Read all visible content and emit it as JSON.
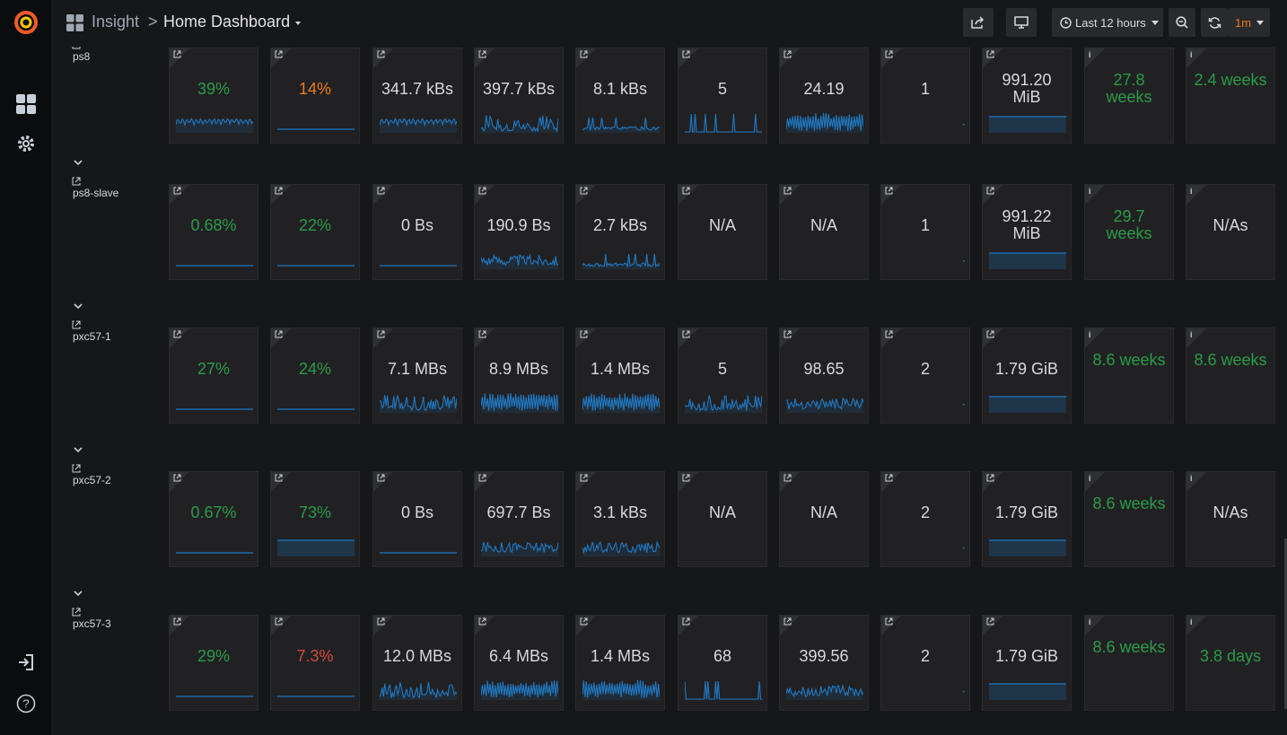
{
  "nav": {
    "app": "Insight",
    "separator": ">",
    "dashboard": "Home Dashboard"
  },
  "toolbar": {
    "time_range": "Last 12 hours",
    "refresh_interval": "1m"
  },
  "colors": {
    "green": "#299c46",
    "orange": "#eb7b18",
    "red": "#d44a3a",
    "spark": "#1f78c1",
    "panel_bg": "#212124"
  },
  "hosts": [
    {
      "name": "ps8",
      "panels": [
        {
          "v": "39%",
          "c": "green",
          "s": "wave"
        },
        {
          "v": "14%",
          "c": "orange",
          "s": "flat"
        },
        {
          "v": "341.7 kBs",
          "c": "white",
          "s": "wave"
        },
        {
          "v": "397.7 kBs",
          "c": "white",
          "s": "spiky"
        },
        {
          "v": "8.1 kBs",
          "c": "white",
          "s": "low"
        },
        {
          "v": "5",
          "c": "white",
          "s": "bars"
        },
        {
          "v": "24.19",
          "c": "white",
          "s": "dense"
        },
        {
          "v": "1",
          "c": "white",
          "s": "dot"
        },
        {
          "v": "991.20 MiB",
          "c": "white",
          "s": "fill"
        },
        {
          "v": "27.8 weeks",
          "c": "green",
          "s": "none",
          "i": true
        },
        {
          "v": "2.4 weeks",
          "c": "green",
          "s": "none",
          "i": true
        }
      ]
    },
    {
      "name": "ps8-slave",
      "panels": [
        {
          "v": "0.68%",
          "c": "green",
          "s": "flat"
        },
        {
          "v": "22%",
          "c": "green",
          "s": "flat"
        },
        {
          "v": "0 Bs",
          "c": "white",
          "s": "flat"
        },
        {
          "v": "190.9 Bs",
          "c": "white",
          "s": "noisy"
        },
        {
          "v": "2.7 kBs",
          "c": "white",
          "s": "low"
        },
        {
          "v": "N/A",
          "c": "white",
          "s": "none"
        },
        {
          "v": "N/A",
          "c": "white",
          "s": "none"
        },
        {
          "v": "1",
          "c": "white",
          "s": "dot"
        },
        {
          "v": "991.22 MiB",
          "c": "white",
          "s": "fill"
        },
        {
          "v": "29.7 weeks",
          "c": "green",
          "s": "none",
          "i": true
        },
        {
          "v": "N/As",
          "c": "white",
          "s": "none",
          "i": true
        }
      ]
    },
    {
      "name": "pxc57-1",
      "panels": [
        {
          "v": "27%",
          "c": "green",
          "s": "flat"
        },
        {
          "v": "24%",
          "c": "green",
          "s": "flat"
        },
        {
          "v": "7.1 MBs",
          "c": "white",
          "s": "spiky"
        },
        {
          "v": "8.9 MBs",
          "c": "white",
          "s": "dense"
        },
        {
          "v": "1.4 MBs",
          "c": "white",
          "s": "dense"
        },
        {
          "v": "5",
          "c": "white",
          "s": "spiky"
        },
        {
          "v": "98.65",
          "c": "white",
          "s": "noisy"
        },
        {
          "v": "2",
          "c": "white",
          "s": "dot"
        },
        {
          "v": "1.79 GiB",
          "c": "white",
          "s": "fill"
        },
        {
          "v": "8.6 weeks",
          "c": "green",
          "s": "none",
          "i": true
        },
        {
          "v": "8.6 weeks",
          "c": "green",
          "s": "none",
          "i": true
        }
      ]
    },
    {
      "name": "pxc57-2",
      "panels": [
        {
          "v": "0.67%",
          "c": "green",
          "s": "flat"
        },
        {
          "v": "73%",
          "c": "green",
          "s": "fill"
        },
        {
          "v": "0 Bs",
          "c": "white",
          "s": "flat"
        },
        {
          "v": "697.7 Bs",
          "c": "white",
          "s": "noisy"
        },
        {
          "v": "3.1 kBs",
          "c": "white",
          "s": "noisy"
        },
        {
          "v": "N/A",
          "c": "white",
          "s": "none"
        },
        {
          "v": "N/A",
          "c": "white",
          "s": "none"
        },
        {
          "v": "2",
          "c": "white",
          "s": "dot"
        },
        {
          "v": "1.79 GiB",
          "c": "white",
          "s": "fill"
        },
        {
          "v": "8.6 weeks",
          "c": "green",
          "s": "none",
          "i": true
        },
        {
          "v": "N/As",
          "c": "white",
          "s": "none",
          "i": true
        }
      ]
    },
    {
      "name": "pxc57-3",
      "panels": [
        {
          "v": "29%",
          "c": "green",
          "s": "flat"
        },
        {
          "v": "7.3%",
          "c": "red",
          "s": "flat"
        },
        {
          "v": "12.0 MBs",
          "c": "white",
          "s": "spiky"
        },
        {
          "v": "6.4 MBs",
          "c": "white",
          "s": "dense"
        },
        {
          "v": "1.4 MBs",
          "c": "white",
          "s": "dense"
        },
        {
          "v": "68",
          "c": "white",
          "s": "bars"
        },
        {
          "v": "399.56",
          "c": "white",
          "s": "noisy"
        },
        {
          "v": "2",
          "c": "white",
          "s": "dot"
        },
        {
          "v": "1.79 GiB",
          "c": "white",
          "s": "fill"
        },
        {
          "v": "8.6 weeks",
          "c": "green",
          "s": "none",
          "i": true
        },
        {
          "v": "3.8 days",
          "c": "green",
          "s": "none",
          "i": true
        }
      ]
    }
  ]
}
